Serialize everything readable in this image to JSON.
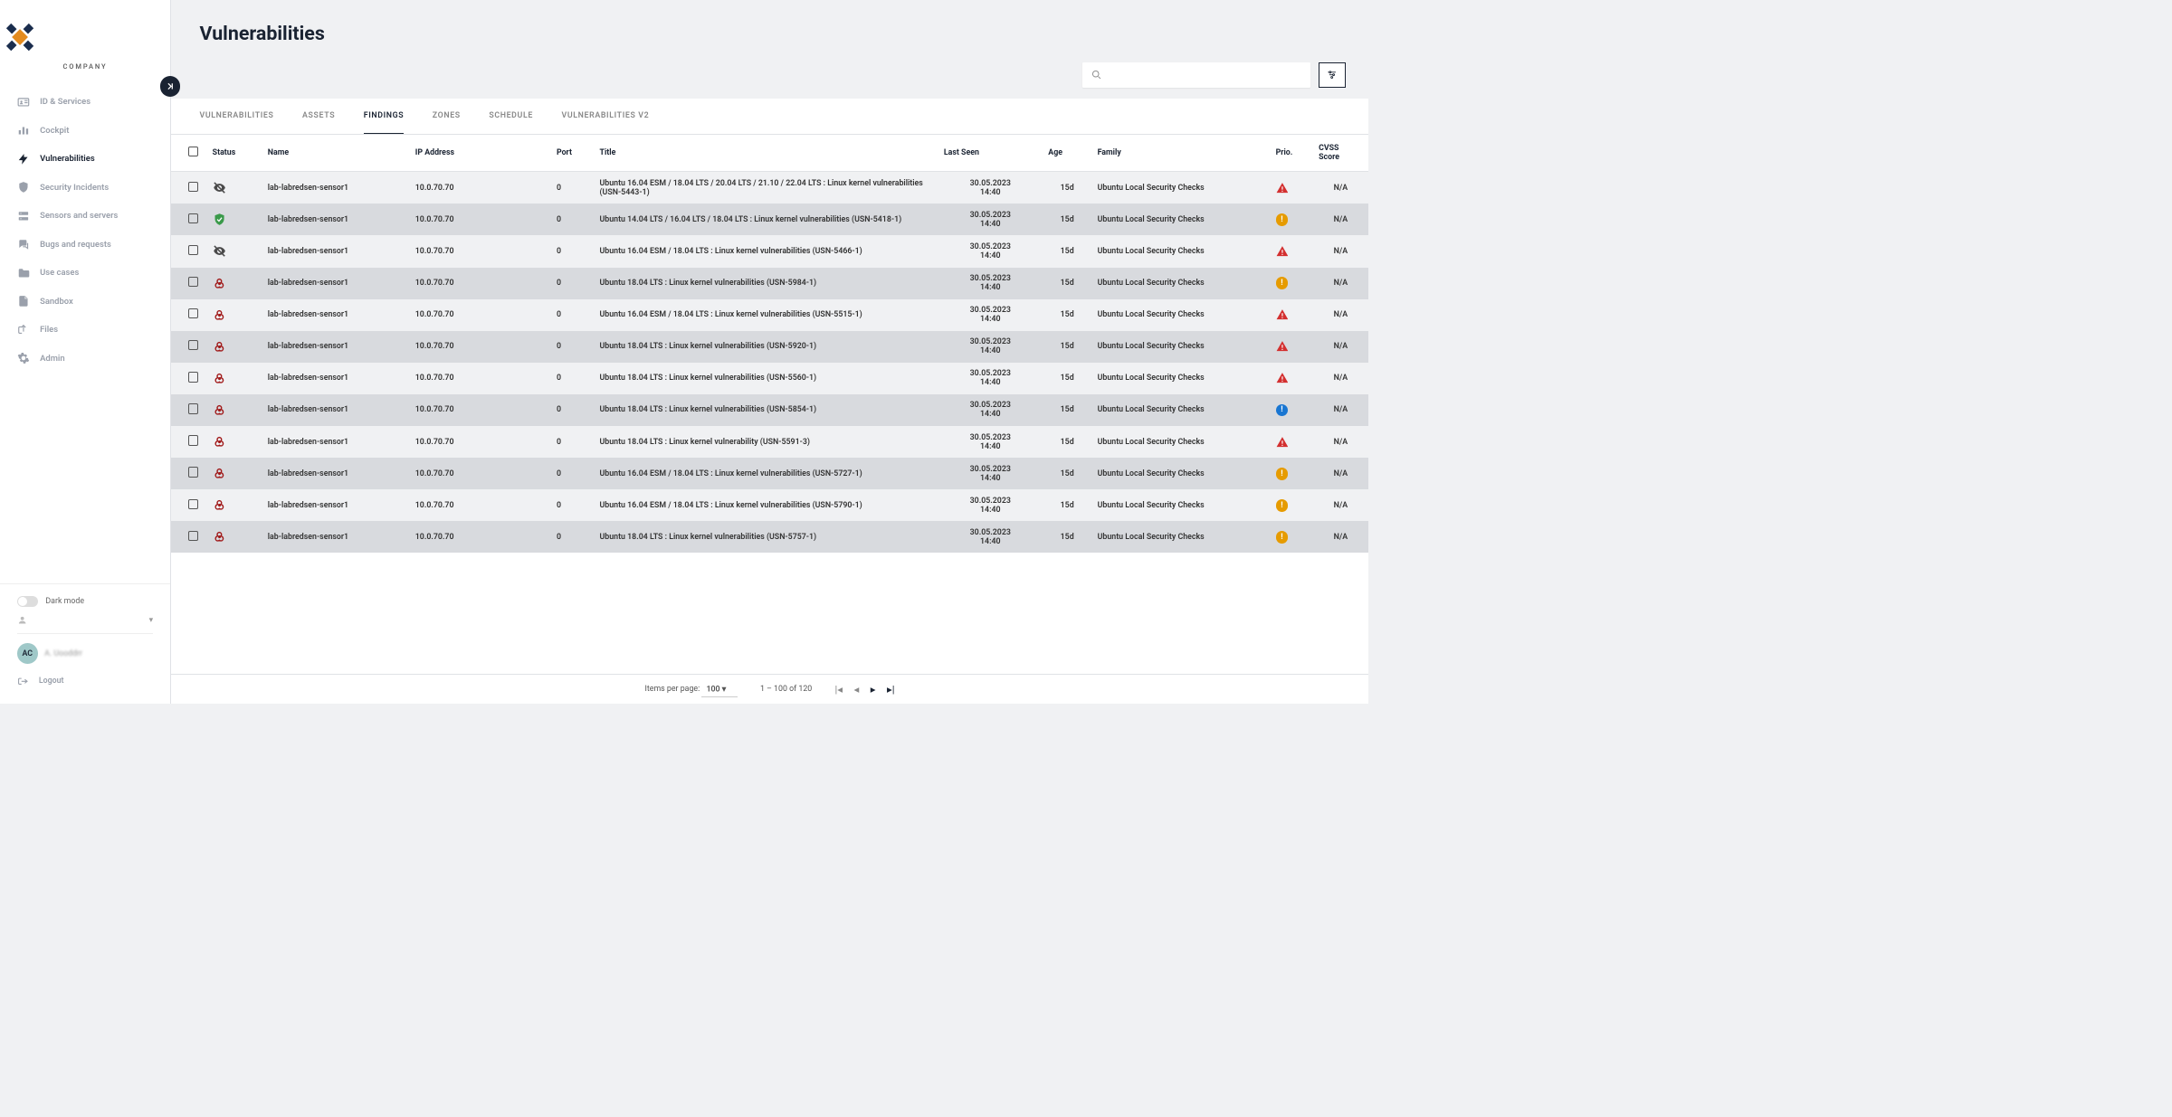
{
  "brand": "COMPANY",
  "page_title": "Vulnerabilities",
  "colors": {
    "bg": "#f0f1f3",
    "text": "#1a2332",
    "muted": "#9aa0ab",
    "row_odd": "#f0f1f3",
    "row_even": "#d8dade",
    "accent_orange": "#e38b1f",
    "prio_red": "#d32f2f",
    "prio_orange": "#e69b00",
    "prio_blue": "#1976d2",
    "status_eye": "#4a4a4a",
    "status_shield": "#3a9a4a",
    "status_bio": "#a01818"
  },
  "sidebar": {
    "items": [
      {
        "icon": "id-card",
        "label": "ID & Services"
      },
      {
        "icon": "bar-chart",
        "label": "Cockpit"
      },
      {
        "icon": "bolt",
        "label": "Vulnerabilities",
        "active": true
      },
      {
        "icon": "shield",
        "label": "Security Incidents"
      },
      {
        "icon": "server",
        "label": "Sensors and servers"
      },
      {
        "icon": "chat",
        "label": "Bugs and requests"
      },
      {
        "icon": "folder",
        "label": "Use cases"
      },
      {
        "icon": "note",
        "label": "Sandbox"
      },
      {
        "icon": "share",
        "label": "Files"
      },
      {
        "icon": "gear",
        "label": "Admin"
      }
    ],
    "dark_mode_label": "Dark mode",
    "avatar_initials": "AC",
    "avatar_name": "A. Uooddrr",
    "logout_label": "Logout"
  },
  "search": {
    "placeholder": ""
  },
  "tabs": [
    {
      "label": "VULNERABILITIES"
    },
    {
      "label": "ASSETS"
    },
    {
      "label": "FINDINGS",
      "active": true
    },
    {
      "label": "ZONES"
    },
    {
      "label": "SCHEDULE"
    },
    {
      "label": "VULNERABILITIES V2"
    }
  ],
  "columns": [
    "",
    "Status",
    "Name",
    "IP Address",
    "Port",
    "Title",
    "Last Seen",
    "Age",
    "Family",
    "Prio.",
    "CVSS Score"
  ],
  "rows": [
    {
      "status": "eye",
      "name": "lab-labredsen-sensor1",
      "ip": "10.0.70.70",
      "port": "0",
      "title": "Ubuntu 16.04 ESM / 18.04 LTS / 20.04 LTS / 21.10 / 22.04 LTS : Linux kernel vulnerabilities (USN-5443-1)",
      "last_date": "30.05.2023",
      "last_time": "14:40",
      "age": "15d",
      "family": "Ubuntu Local Security Checks",
      "prio": "red",
      "cvss": "N/A"
    },
    {
      "status": "shield",
      "name": "lab-labredsen-sensor1",
      "ip": "10.0.70.70",
      "port": "0",
      "title": "Ubuntu 14.04 LTS / 16.04 LTS / 18.04 LTS : Linux kernel vulnerabilities (USN-5418-1)",
      "last_date": "30.05.2023",
      "last_time": "14:40",
      "age": "15d",
      "family": "Ubuntu Local Security Checks",
      "prio": "orange",
      "cvss": "N/A"
    },
    {
      "status": "eye",
      "name": "lab-labredsen-sensor1",
      "ip": "10.0.70.70",
      "port": "0",
      "title": "Ubuntu 16.04 ESM / 18.04 LTS : Linux kernel vulnerabilities (USN-5466-1)",
      "last_date": "30.05.2023",
      "last_time": "14:40",
      "age": "15d",
      "family": "Ubuntu Local Security Checks",
      "prio": "red",
      "cvss": "N/A"
    },
    {
      "status": "bio",
      "name": "lab-labredsen-sensor1",
      "ip": "10.0.70.70",
      "port": "0",
      "title": "Ubuntu 18.04 LTS : Linux kernel vulnerabilities (USN-5984-1)",
      "last_date": "30.05.2023",
      "last_time": "14:40",
      "age": "15d",
      "family": "Ubuntu Local Security Checks",
      "prio": "orange",
      "cvss": "N/A"
    },
    {
      "status": "bio",
      "name": "lab-labredsen-sensor1",
      "ip": "10.0.70.70",
      "port": "0",
      "title": "Ubuntu 16.04 ESM / 18.04 LTS : Linux kernel vulnerabilities (USN-5515-1)",
      "last_date": "30.05.2023",
      "last_time": "14:40",
      "age": "15d",
      "family": "Ubuntu Local Security Checks",
      "prio": "red",
      "cvss": "N/A"
    },
    {
      "status": "bio",
      "name": "lab-labredsen-sensor1",
      "ip": "10.0.70.70",
      "port": "0",
      "title": "Ubuntu 18.04 LTS : Linux kernel vulnerabilities (USN-5920-1)",
      "last_date": "30.05.2023",
      "last_time": "14:40",
      "age": "15d",
      "family": "Ubuntu Local Security Checks",
      "prio": "red",
      "cvss": "N/A"
    },
    {
      "status": "bio",
      "name": "lab-labredsen-sensor1",
      "ip": "10.0.70.70",
      "port": "0",
      "title": "Ubuntu 18.04 LTS : Linux kernel vulnerabilities (USN-5560-1)",
      "last_date": "30.05.2023",
      "last_time": "14:40",
      "age": "15d",
      "family": "Ubuntu Local Security Checks",
      "prio": "red",
      "cvss": "N/A"
    },
    {
      "status": "bio",
      "name": "lab-labredsen-sensor1",
      "ip": "10.0.70.70",
      "port": "0",
      "title": "Ubuntu 18.04 LTS : Linux kernel vulnerabilities (USN-5854-1)",
      "last_date": "30.05.2023",
      "last_time": "14:40",
      "age": "15d",
      "family": "Ubuntu Local Security Checks",
      "prio": "blue",
      "cvss": "N/A"
    },
    {
      "status": "bio",
      "name": "lab-labredsen-sensor1",
      "ip": "10.0.70.70",
      "port": "0",
      "title": "Ubuntu 18.04 LTS : Linux kernel vulnerability (USN-5591-3)",
      "last_date": "30.05.2023",
      "last_time": "14:40",
      "age": "15d",
      "family": "Ubuntu Local Security Checks",
      "prio": "red",
      "cvss": "N/A"
    },
    {
      "status": "bio",
      "name": "lab-labredsen-sensor1",
      "ip": "10.0.70.70",
      "port": "0",
      "title": "Ubuntu 16.04 ESM / 18.04 LTS : Linux kernel vulnerabilities (USN-5727-1)",
      "last_date": "30.05.2023",
      "last_time": "14:40",
      "age": "15d",
      "family": "Ubuntu Local Security Checks",
      "prio": "orange",
      "cvss": "N/A"
    },
    {
      "status": "bio",
      "name": "lab-labredsen-sensor1",
      "ip": "10.0.70.70",
      "port": "0",
      "title": "Ubuntu 16.04 ESM / 18.04 LTS : Linux kernel vulnerabilities (USN-5790-1)",
      "last_date": "30.05.2023",
      "last_time": "14:40",
      "age": "15d",
      "family": "Ubuntu Local Security Checks",
      "prio": "orange",
      "cvss": "N/A"
    },
    {
      "status": "bio",
      "name": "lab-labredsen-sensor1",
      "ip": "10.0.70.70",
      "port": "0",
      "title": "Ubuntu 18.04 LTS : Linux kernel vulnerabilities (USN-5757-1)",
      "last_date": "30.05.2023",
      "last_time": "14:40",
      "age": "15d",
      "family": "Ubuntu Local Security Checks",
      "prio": "orange",
      "cvss": "N/A"
    }
  ],
  "pager": {
    "items_per_page_label": "Items per page:",
    "per_page": "100",
    "range": "1 – 100 of 120"
  }
}
